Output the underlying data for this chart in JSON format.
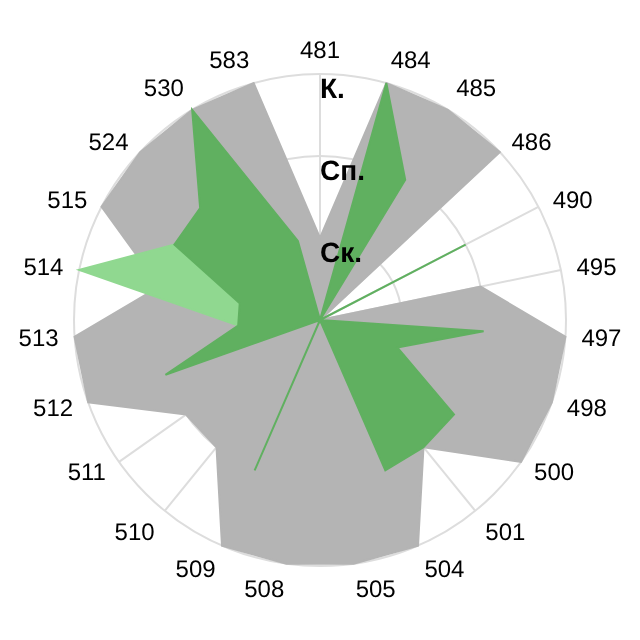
{
  "chart_data": {
    "type": "radar",
    "categories": [
      "481",
      "484",
      "485",
      "486",
      "490",
      "495",
      "497",
      "498",
      "500",
      "501",
      "504",
      "505",
      "508",
      "509",
      "510",
      "511",
      "512",
      "513",
      "514",
      "515",
      "524",
      "530",
      "583"
    ],
    "ylim": [
      0,
      3
    ],
    "yticks": [
      {
        "value": 1,
        "label": "Ск."
      },
      {
        "value": 2,
        "label": "Сп."
      },
      {
        "value": 3,
        "label": "К."
      }
    ],
    "grid": true,
    "series": [
      {
        "color": "#b4b4b4",
        "values": [
          1,
          3,
          3,
          3,
          0,
          2,
          3,
          3,
          3,
          2,
          3,
          3,
          3,
          3,
          2,
          2,
          3,
          3,
          2,
          3,
          3,
          3,
          3
        ]
      },
      {
        "color": "#90d890",
        "values": [
          0,
          0,
          0,
          0,
          0,
          0,
          0,
          0,
          0,
          0,
          0,
          0,
          0,
          0,
          0,
          0,
          0,
          1,
          3,
          2,
          0,
          0,
          0
        ]
      },
      {
        "color": "#60b060",
        "values": [
          0,
          3,
          2,
          0,
          2,
          0,
          2,
          1,
          2,
          2,
          2,
          0,
          0,
          2,
          0,
          0,
          2,
          1,
          1,
          2,
          2,
          3,
          1
        ]
      }
    ]
  }
}
